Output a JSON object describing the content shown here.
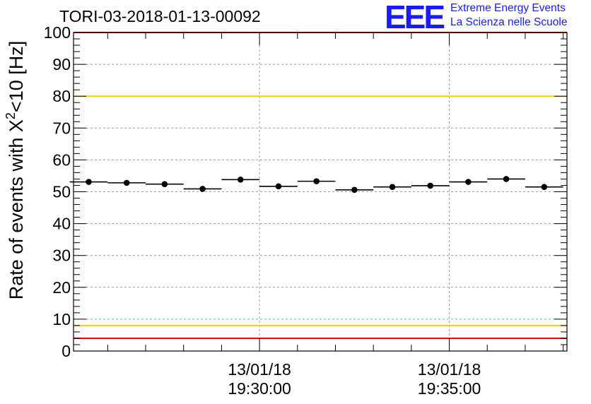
{
  "title": "TORI-03-2018-01-13-00092",
  "logo": {
    "mark": "EEE",
    "line1": "Extreme Energy Events",
    "line2": "La Scienza nelle Scuole"
  },
  "chart_data": {
    "type": "scatter",
    "title": "TORI-03-2018-01-13-00092",
    "ylabel_main": "Rate of events with X",
    "ylabel_sup": "2",
    "ylabel_tail": "<10 [Hz]",
    "ylim": [
      0,
      100
    ],
    "y_ticks": [
      0,
      10,
      20,
      30,
      40,
      50,
      60,
      70,
      80,
      90,
      100
    ],
    "x_range_minutes": [
      -4.9,
      8.1
    ],
    "x_major_ticks": [
      {
        "minute": 0,
        "date": "13/01/18",
        "time": "19:30:00"
      },
      {
        "minute": 5,
        "date": "13/01/18",
        "time": "19:35:00"
      }
    ],
    "grid": true,
    "series": [
      {
        "name": "rate",
        "bin_width_minutes": 1,
        "x_minutes": [
          -4.5,
          -3.5,
          -2.5,
          -1.5,
          -0.5,
          0.5,
          1.5,
          2.5,
          3.5,
          4.5,
          5.5,
          6.5,
          7.5
        ],
        "values": [
          53.1,
          52.8,
          52.4,
          50.9,
          53.8,
          51.7,
          53.3,
          50.6,
          51.5,
          51.9,
          53.1,
          54.0,
          51.5
        ]
      }
    ],
    "reference_lines": [
      {
        "value": 100,
        "color": "#ff0000"
      },
      {
        "value": 80,
        "color": "#ffcc00"
      },
      {
        "value": 8,
        "color": "#ffcc00"
      },
      {
        "value": 4,
        "color": "#ff0000"
      }
    ]
  }
}
